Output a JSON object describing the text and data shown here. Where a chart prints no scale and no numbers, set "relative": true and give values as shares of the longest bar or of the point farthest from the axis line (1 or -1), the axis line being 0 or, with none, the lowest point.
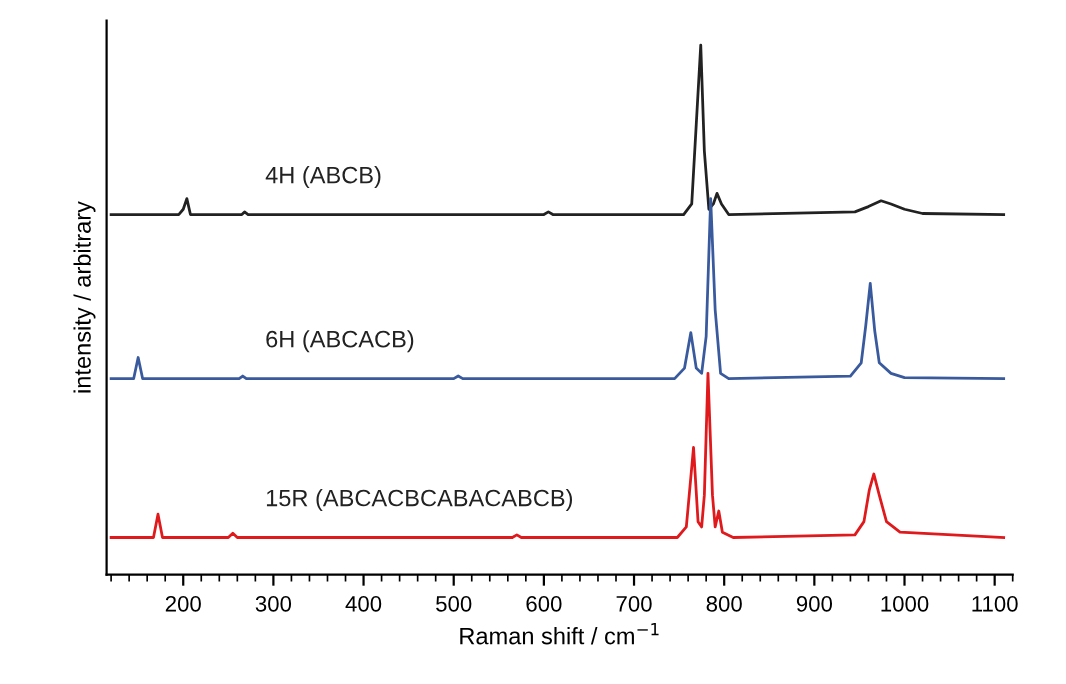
{
  "chart_data": {
    "type": "line",
    "relative": true,
    "xlabel": "Raman shift / cm$^{−1}$",
    "ylabel": "intensity / arbitrary",
    "xlim": [
      115,
      1120
    ],
    "xticks": [
      200,
      300,
      400,
      500,
      600,
      700,
      800,
      900,
      1000,
      1100,
      {
        "value": 120,
        "label": null
      },
      {
        "value": 140,
        "label": null
      },
      {
        "value": 160,
        "label": null
      },
      {
        "value": 180,
        "label": null
      },
      {
        "value": 220,
        "label": null
      },
      {
        "value": 240,
        "label": null
      },
      {
        "value": 260,
        "label": null
      },
      {
        "value": 280,
        "label": null
      },
      {
        "value": 320,
        "label": null
      },
      {
        "value": 340,
        "label": null
      },
      {
        "value": 360,
        "label": null
      },
      {
        "value": 380,
        "label": null
      },
      {
        "value": 420,
        "label": null
      },
      {
        "value": 440,
        "label": null
      },
      {
        "value": 460,
        "label": null
      },
      {
        "value": 480,
        "label": null
      },
      {
        "value": 520,
        "label": null
      },
      {
        "value": 540,
        "label": null
      },
      {
        "value": 560,
        "label": null
      },
      {
        "value": 580,
        "label": null
      },
      {
        "value": 620,
        "label": null
      },
      {
        "value": 640,
        "label": null
      },
      {
        "value": 660,
        "label": null
      },
      {
        "value": 680,
        "label": null
      },
      {
        "value": 720,
        "label": null
      },
      {
        "value": 740,
        "label": null
      },
      {
        "value": 760,
        "label": null
      },
      {
        "value": 780,
        "label": null
      },
      {
        "value": 820,
        "label": null
      },
      {
        "value": 840,
        "label": null
      },
      {
        "value": 860,
        "label": null
      },
      {
        "value": 880,
        "label": null
      },
      {
        "value": 920,
        "label": null
      },
      {
        "value": 940,
        "label": null
      },
      {
        "value": 960,
        "label": null
      },
      {
        "value": 980,
        "label": null
      },
      {
        "value": 1020,
        "label": null
      },
      {
        "value": 1040,
        "label": null
      },
      {
        "value": 1060,
        "label": null
      },
      {
        "value": 1080,
        "label": null
      },
      {
        "value": 1120,
        "label": null
      }
    ],
    "grid": false,
    "legend": false,
    "marker": "none",
    "line_style": "solid",
    "series": [
      {
        "name": "4H (ABCB)",
        "color": "#222222",
        "x": [
          120,
          195,
          200,
          204,
          208,
          265,
          268,
          272,
          600,
          605,
          610,
          755,
          764,
          769,
          774,
          778,
          783,
          788,
          792,
          797,
          805,
          945,
          960,
          974,
          985,
          1000,
          1020,
          1110
        ],
        "values": [
          0.68,
          0.68,
          0.69,
          0.71,
          0.68,
          0.68,
          0.685,
          0.68,
          0.68,
          0.685,
          0.68,
          0.68,
          0.7,
          0.85,
          1.0,
          0.8,
          0.69,
          0.7,
          0.72,
          0.7,
          0.68,
          0.685,
          0.695,
          0.706,
          0.7,
          0.69,
          0.682,
          0.68
        ]
      },
      {
        "name": "6H (ABCACB)",
        "color": "#3a5a9e",
        "x": [
          120,
          145,
          150,
          155,
          262,
          266,
          270,
          500,
          505,
          510,
          745,
          756,
          763,
          769,
          775,
          780,
          785,
          790,
          796,
          805,
          940,
          952,
          957,
          962,
          967,
          972,
          985,
          1000,
          1110
        ],
        "values": [
          0.37,
          0.37,
          0.41,
          0.37,
          0.37,
          0.375,
          0.37,
          0.37,
          0.375,
          0.37,
          0.37,
          0.39,
          0.457,
          0.39,
          0.38,
          0.45,
          0.71,
          0.5,
          0.38,
          0.37,
          0.375,
          0.4,
          0.47,
          0.55,
          0.46,
          0.4,
          0.38,
          0.372,
          0.37
        ]
      },
      {
        "name": "15R (ABCACBCABACABCB)",
        "color": "#e0191c",
        "x": [
          120,
          167,
          172,
          177,
          250,
          255,
          260,
          565,
          570,
          575,
          748,
          758,
          766,
          771,
          775,
          778,
          782,
          787,
          790,
          794,
          798,
          810,
          945,
          955,
          961,
          966,
          972,
          980,
          995,
          1110
        ],
        "values": [
          0.07,
          0.07,
          0.114,
          0.07,
          0.07,
          0.078,
          0.07,
          0.07,
          0.075,
          0.07,
          0.07,
          0.09,
          0.24,
          0.1,
          0.09,
          0.15,
          0.38,
          0.15,
          0.09,
          0.12,
          0.08,
          0.07,
          0.075,
          0.1,
          0.16,
          0.19,
          0.15,
          0.1,
          0.08,
          0.07
        ]
      }
    ]
  }
}
